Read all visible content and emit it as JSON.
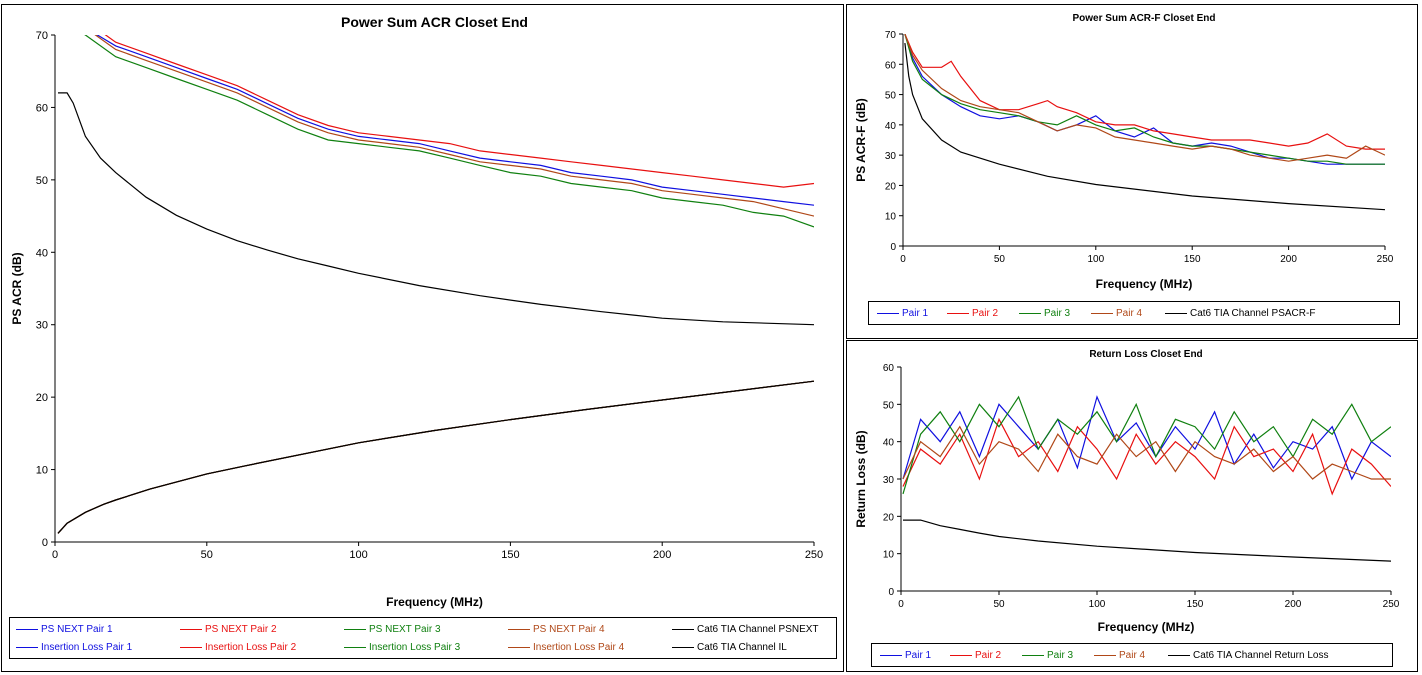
{
  "colors": {
    "pair1": "#1010e0",
    "pair2": "#e81010",
    "pair3": "#108010",
    "pair4": "#b04818",
    "limit": "#000000"
  },
  "chart_data": [
    {
      "id": "acr",
      "type": "line",
      "title": "Power Sum ACR Closet End",
      "xlabel": "Frequency (MHz)",
      "ylabel": "PS ACR (dB)",
      "xlim": [
        0,
        250
      ],
      "ylim": [
        0,
        70
      ],
      "xticks": [
        "0",
        "50",
        "100",
        "150",
        "200",
        "250"
      ],
      "yticks": [
        "0",
        "10",
        "20",
        "30",
        "40",
        "50",
        "60",
        "70"
      ],
      "grid": false,
      "legend_position": "bottom",
      "series": [
        {
          "name": "PS NEXT Pair 1",
          "color": "#1010e0",
          "x": [
            1,
            10,
            20,
            30,
            40,
            50,
            60,
            70,
            80,
            90,
            100,
            110,
            120,
            130,
            140,
            150,
            160,
            170,
            180,
            190,
            200,
            210,
            220,
            230,
            240,
            250
          ],
          "y": [
            73,
            71,
            68.5,
            67,
            65.5,
            64,
            62.5,
            60.5,
            58.5,
            57,
            56,
            55.5,
            55,
            54,
            53,
            52.5,
            52,
            51,
            50.5,
            50,
            49,
            48.5,
            48,
            47.5,
            47,
            46.5
          ]
        },
        {
          "name": "PS NEXT Pair 2",
          "color": "#e81010",
          "x": [
            1,
            10,
            20,
            30,
            40,
            50,
            60,
            70,
            80,
            90,
            100,
            110,
            120,
            130,
            140,
            150,
            160,
            170,
            180,
            190,
            200,
            210,
            220,
            230,
            240,
            250
          ],
          "y": [
            74,
            72,
            69,
            67.5,
            66,
            64.5,
            63,
            61,
            59,
            57.5,
            56.5,
            56,
            55.5,
            55,
            54,
            53.5,
            53,
            52.5,
            52,
            51.5,
            51,
            50.5,
            50,
            49.5,
            49,
            49.5
          ]
        },
        {
          "name": "PS NEXT Pair 3",
          "color": "#108010",
          "x": [
            1,
            10,
            20,
            30,
            40,
            50,
            60,
            70,
            80,
            90,
            100,
            110,
            120,
            130,
            140,
            150,
            160,
            170,
            180,
            190,
            200,
            210,
            220,
            230,
            240,
            250
          ],
          "y": [
            72,
            70,
            67,
            65.5,
            64,
            62.5,
            61,
            59,
            57,
            55.5,
            55,
            54.5,
            54,
            53,
            52,
            51,
            50.5,
            49.5,
            49,
            48.5,
            47.5,
            47,
            46.5,
            45.5,
            45,
            43.5
          ]
        },
        {
          "name": "PS NEXT Pair 4",
          "color": "#b04818",
          "x": [
            1,
            10,
            20,
            30,
            40,
            50,
            60,
            70,
            80,
            90,
            100,
            110,
            120,
            130,
            140,
            150,
            160,
            170,
            180,
            190,
            200,
            210,
            220,
            230,
            240,
            250
          ],
          "y": [
            73.5,
            71,
            68,
            66.5,
            65,
            63.5,
            62,
            60,
            58,
            56.5,
            55.5,
            55,
            54.5,
            53.5,
            52.5,
            52,
            51.5,
            50.5,
            50,
            49.5,
            48.5,
            48,
            47.5,
            47,
            46,
            45
          ]
        },
        {
          "name": "Cat6 TIA Channel PSNEXT",
          "color": "#000000",
          "x": [
            1,
            4,
            6,
            10,
            15,
            20,
            30,
            40,
            50,
            60,
            70,
            80,
            90,
            100,
            120,
            140,
            160,
            180,
            200,
            220,
            250
          ],
          "y": [
            62,
            62,
            60.6,
            56,
            53,
            51,
            47.6,
            45.1,
            43.2,
            41.6,
            40.3,
            39.1,
            38.1,
            37.1,
            35.4,
            34,
            32.8,
            31.8,
            30.9,
            30.4,
            30
          ]
        },
        {
          "name": "Insertion Loss Pair 1",
          "color": "#1010e0",
          "x": [
            1,
            4,
            10,
            16,
            20,
            31.25,
            50,
            62.5,
            100,
            125,
            150,
            175,
            200,
            225,
            250
          ],
          "y": [
            1.2,
            2.6,
            4.1,
            5.2,
            5.8,
            7.3,
            9.4,
            10.5,
            13.7,
            15.4,
            16.9,
            18.3,
            19.6,
            20.9,
            22.2
          ]
        },
        {
          "name": "Insertion Loss Pair 2",
          "color": "#e81010",
          "x": [
            1,
            4,
            10,
            16,
            20,
            31.25,
            50,
            62.5,
            100,
            125,
            150,
            175,
            200,
            225,
            250
          ],
          "y": [
            1.2,
            2.6,
            4.1,
            5.2,
            5.8,
            7.3,
            9.4,
            10.5,
            13.7,
            15.4,
            16.9,
            18.3,
            19.6,
            20.9,
            22.2
          ]
        },
        {
          "name": "Insertion Loss Pair 3",
          "color": "#108010",
          "x": [
            1,
            4,
            10,
            16,
            20,
            31.25,
            50,
            62.5,
            100,
            125,
            150,
            175,
            200,
            225,
            250
          ],
          "y": [
            1.2,
            2.6,
            4.1,
            5.2,
            5.8,
            7.3,
            9.4,
            10.5,
            13.7,
            15.4,
            16.9,
            18.3,
            19.6,
            20.9,
            22.2
          ]
        },
        {
          "name": "Insertion Loss Pair 4",
          "color": "#b04818",
          "x": [
            1,
            4,
            10,
            16,
            20,
            31.25,
            50,
            62.5,
            100,
            125,
            150,
            175,
            200,
            225,
            250
          ],
          "y": [
            1.2,
            2.6,
            4.1,
            5.2,
            5.8,
            7.3,
            9.4,
            10.5,
            13.7,
            15.4,
            16.9,
            18.3,
            19.6,
            20.9,
            22.2
          ]
        },
        {
          "name": "Cat6 TIA Channel IL",
          "color": "#000000",
          "x": [
            1,
            4,
            10,
            16,
            20,
            31.25,
            50,
            62.5,
            100,
            125,
            150,
            175,
            200,
            225,
            250
          ],
          "y": [
            1.2,
            2.6,
            4.1,
            5.2,
            5.8,
            7.3,
            9.4,
            10.5,
            13.7,
            15.4,
            16.9,
            18.3,
            19.6,
            20.9,
            22.2
          ]
        }
      ]
    },
    {
      "id": "acrf",
      "type": "line",
      "title": "Power Sum ACR-F Closet End",
      "xlabel": "Frequency (MHz)",
      "ylabel": "PS ACR-F (dB)",
      "xlim": [
        0,
        250
      ],
      "ylim": [
        0,
        70
      ],
      "xticks": [
        "0",
        "50",
        "100",
        "150",
        "200",
        "250"
      ],
      "yticks": [
        "0",
        "10",
        "20",
        "30",
        "40",
        "50",
        "60",
        "70"
      ],
      "grid": false,
      "legend_position": "bottom",
      "series": [
        {
          "name": "Pair 1",
          "color": "#1010e0",
          "x": [
            1,
            5,
            10,
            20,
            30,
            40,
            50,
            60,
            70,
            80,
            90,
            100,
            110,
            120,
            130,
            140,
            150,
            160,
            170,
            180,
            190,
            200,
            210,
            220,
            230,
            240,
            250
          ],
          "y": [
            70,
            62,
            56,
            50,
            46,
            43,
            42,
            43,
            41,
            38,
            40,
            43,
            38,
            36,
            39,
            34,
            33,
            34,
            33,
            31,
            29,
            29,
            28,
            27,
            27,
            27,
            27
          ]
        },
        {
          "name": "Pair 2",
          "color": "#e81010",
          "x": [
            1,
            5,
            10,
            20,
            25,
            30,
            40,
            50,
            60,
            70,
            75,
            80,
            90,
            100,
            110,
            120,
            130,
            140,
            150,
            160,
            170,
            180,
            190,
            200,
            210,
            220,
            230,
            240,
            250
          ],
          "y": [
            70,
            64,
            59,
            59,
            61,
            56,
            48,
            45,
            45,
            47,
            48,
            46,
            44,
            41,
            40,
            40,
            38,
            37,
            36,
            35,
            35,
            35,
            34,
            33,
            34,
            37,
            33,
            32,
            32
          ]
        },
        {
          "name": "Pair 3",
          "color": "#108010",
          "x": [
            1,
            5,
            10,
            20,
            30,
            40,
            50,
            60,
            70,
            80,
            90,
            100,
            110,
            120,
            130,
            140,
            150,
            160,
            170,
            180,
            190,
            200,
            210,
            220,
            230,
            240,
            250
          ],
          "y": [
            70,
            61,
            55,
            50,
            47,
            45,
            44,
            43,
            41,
            40,
            43,
            40,
            38,
            39,
            36,
            34,
            33,
            33,
            32,
            31,
            30,
            29,
            28,
            28,
            27,
            27,
            27
          ]
        },
        {
          "name": "Pair 4",
          "color": "#b04818",
          "x": [
            1,
            5,
            10,
            20,
            30,
            40,
            50,
            60,
            70,
            80,
            90,
            100,
            110,
            120,
            130,
            140,
            150,
            160,
            170,
            180,
            190,
            200,
            210,
            220,
            230,
            240,
            250
          ],
          "y": [
            70,
            63,
            58,
            52,
            48,
            46,
            45,
            44,
            41,
            38,
            40,
            39,
            36,
            35,
            34,
            33,
            32,
            33,
            32,
            30,
            29,
            28,
            29,
            30,
            29,
            33,
            30
          ]
        },
        {
          "name": "Cat6 TIA Channel PSACR-F",
          "color": "#000000",
          "x": [
            1,
            3,
            5,
            10,
            20,
            30,
            50,
            75,
            100,
            150,
            200,
            250
          ],
          "y": [
            67,
            56,
            50,
            42,
            35,
            31,
            27,
            23,
            20.3,
            16.5,
            14,
            12
          ]
        }
      ]
    },
    {
      "id": "rl",
      "type": "line",
      "title": "Return Loss Closet End",
      "xlabel": "Frequency (MHz)",
      "ylabel": "Return Loss (dB)",
      "xlim": [
        0,
        250
      ],
      "ylim": [
        0,
        60
      ],
      "xticks": [
        "0",
        "50",
        "100",
        "150",
        "200",
        "250"
      ],
      "yticks": [
        "0",
        "10",
        "20",
        "30",
        "40",
        "50",
        "60"
      ],
      "grid": false,
      "legend_position": "bottom",
      "series": [
        {
          "name": "Pair 1",
          "color": "#1010e0",
          "x": [
            1,
            10,
            20,
            30,
            40,
            50,
            60,
            70,
            80,
            90,
            100,
            110,
            120,
            130,
            140,
            150,
            160,
            170,
            180,
            190,
            200,
            210,
            220,
            230,
            240,
            250
          ],
          "y": [
            30,
            46,
            40,
            48,
            36,
            50,
            44,
            38,
            46,
            33,
            52,
            40,
            45,
            36,
            44,
            38,
            48,
            34,
            42,
            33,
            40,
            38,
            44,
            30,
            40,
            36
          ]
        },
        {
          "name": "Pair 2",
          "color": "#e81010",
          "x": [
            1,
            10,
            20,
            30,
            40,
            50,
            60,
            70,
            80,
            90,
            100,
            110,
            120,
            130,
            140,
            150,
            160,
            170,
            180,
            190,
            200,
            210,
            220,
            230,
            240,
            250
          ],
          "y": [
            28,
            38,
            34,
            42,
            30,
            46,
            36,
            40,
            32,
            44,
            38,
            30,
            42,
            34,
            40,
            36,
            30,
            44,
            36,
            38,
            32,
            42,
            26,
            38,
            34,
            28
          ]
        },
        {
          "name": "Pair 3",
          "color": "#108010",
          "x": [
            1,
            10,
            20,
            30,
            40,
            50,
            60,
            70,
            80,
            90,
            100,
            110,
            120,
            130,
            140,
            150,
            160,
            170,
            180,
            190,
            200,
            210,
            220,
            230,
            240,
            250
          ],
          "y": [
            26,
            42,
            48,
            40,
            50,
            44,
            52,
            38,
            46,
            42,
            48,
            40,
            50,
            36,
            46,
            44,
            38,
            48,
            40,
            44,
            36,
            46,
            42,
            50,
            40,
            44
          ]
        },
        {
          "name": "Pair 4",
          "color": "#b04818",
          "x": [
            1,
            10,
            20,
            30,
            40,
            50,
            60,
            70,
            80,
            90,
            100,
            110,
            120,
            130,
            140,
            150,
            160,
            170,
            180,
            190,
            200,
            210,
            220,
            230,
            240,
            250
          ],
          "y": [
            30,
            40,
            36,
            44,
            34,
            40,
            38,
            32,
            42,
            36,
            34,
            42,
            36,
            40,
            32,
            40,
            36,
            34,
            38,
            32,
            36,
            30,
            34,
            32,
            30,
            30
          ]
        },
        {
          "name": "Cat6 TIA Channel Return Loss",
          "color": "#000000",
          "x": [
            1,
            5,
            10,
            20,
            30,
            40,
            50,
            70,
            100,
            150,
            200,
            250
          ],
          "y": [
            19,
            19,
            19,
            17.5,
            16.5,
            15.5,
            14.6,
            13.4,
            12,
            10.3,
            9.1,
            8
          ]
        }
      ]
    }
  ]
}
